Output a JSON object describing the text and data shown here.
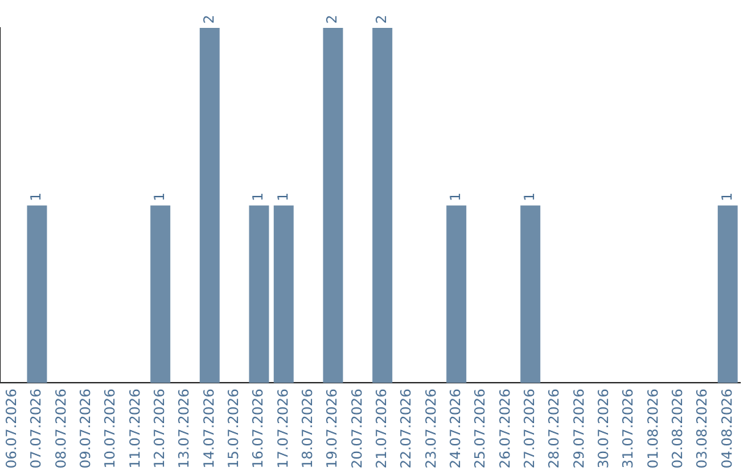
{
  "chart_data": {
    "type": "bar",
    "categories": [
      "06.07.2026",
      "07.07.2026",
      "08.07.2026",
      "09.07.2026",
      "10.07.2026",
      "11.07.2026",
      "12.07.2026",
      "13.07.2026",
      "14.07.2026",
      "15.07.2026",
      "16.07.2026",
      "17.07.2026",
      "18.07.2026",
      "19.07.2026",
      "20.07.2026",
      "21.07.2026",
      "22.07.2026",
      "23.07.2026",
      "24.07.2026",
      "25.07.2026",
      "26.07.2026",
      "27.07.2026",
      "28.07.2026",
      "29.07.2026",
      "30.07.2026",
      "31.07.2026",
      "01.08.2026",
      "02.08.2026",
      "03.08.2026",
      "04.08.2026"
    ],
    "values": [
      0,
      1,
      0,
      0,
      0,
      0,
      1,
      0,
      2,
      0,
      1,
      1,
      0,
      2,
      0,
      2,
      0,
      0,
      1,
      0,
      0,
      1,
      0,
      0,
      0,
      0,
      0,
      0,
      0,
      1
    ],
    "value_labels": [
      null,
      "1",
      null,
      null,
      null,
      null,
      "1",
      null,
      "2",
      null,
      "1",
      "1",
      null,
      "2",
      null,
      "2",
      null,
      null,
      "1",
      null,
      null,
      "1",
      null,
      null,
      null,
      null,
      null,
      null,
      null,
      "1"
    ],
    "color": "#6d8ca8",
    "grid": false,
    "legend": false,
    "tick_labels": "x"
  }
}
